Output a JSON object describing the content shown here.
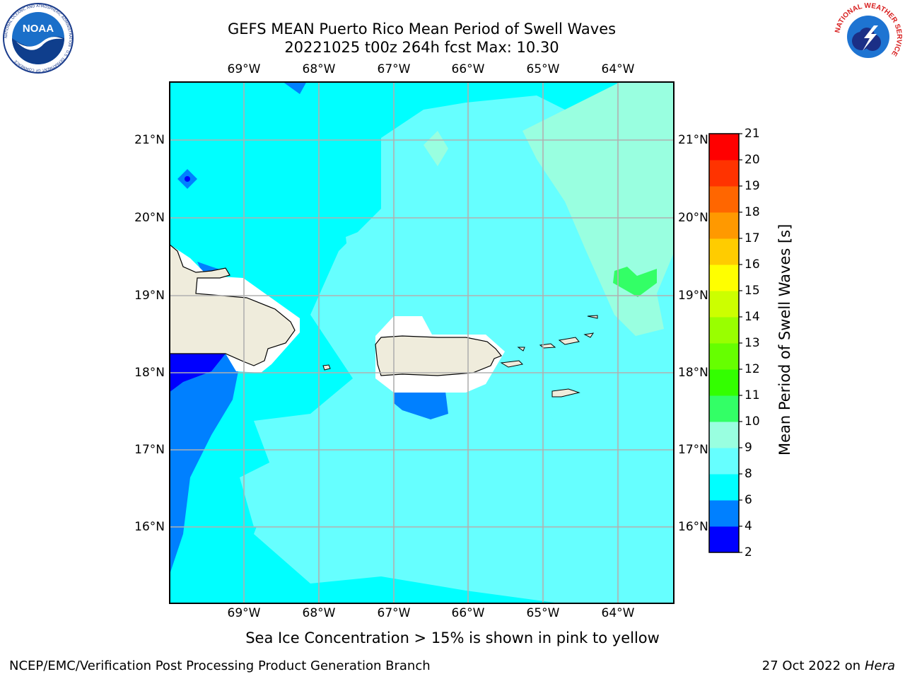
{
  "header": {
    "title_line1": "GEFS MEAN Puerto Rico Mean Period of Swell Waves",
    "title_line2": "20221025 t00z 264h fcst   Max: 10.30"
  },
  "logos": {
    "noaa": {
      "text": "NOAA",
      "ring_text": "NATIONAL OCEANIC AND ATMOSPHERIC ADMINISTRATION · U.S. DEPARTMENT OF COMMERCE"
    },
    "nws": {
      "ring_text": "NATIONAL WEATHER SERVICE"
    }
  },
  "map": {
    "lon_labels": [
      "69°W",
      "68°W",
      "67°W",
      "66°W",
      "65°W",
      "64°W"
    ],
    "lat_labels": [
      "21°N",
      "20°N",
      "19°N",
      "18°N",
      "17°N",
      "16°N"
    ],
    "extent": {
      "lon_min": -69.95,
      "lon_max": -63.2,
      "lat_min": 15.0,
      "lat_max": 21.75
    },
    "regions_note_colors": {
      "land": "#efecdc",
      "ice_mask": "#ffffff",
      "grid": "#b0b0b0"
    }
  },
  "colorbar": {
    "label": "Mean Period of Swell Waves [s]",
    "ticks": [
      "2",
      "4",
      "6",
      "8",
      "9",
      "10",
      "11",
      "12",
      "13",
      "14",
      "15",
      "16",
      "17",
      "18",
      "19",
      "20",
      "21"
    ],
    "bins": [
      {
        "from": 2,
        "to": 4,
        "color": "#0000ff"
      },
      {
        "from": 4,
        "to": 6,
        "color": "#0080ff"
      },
      {
        "from": 6,
        "to": 8,
        "color": "#00ffff"
      },
      {
        "from": 8,
        "to": 9,
        "color": "#66ffff"
      },
      {
        "from": 9,
        "to": 10,
        "color": "#99ffe0"
      },
      {
        "from": 10,
        "to": 11,
        "color": "#33ff66"
      },
      {
        "from": 11,
        "to": 12,
        "color": "#33ff00"
      },
      {
        "from": 12,
        "to": 13,
        "color": "#66ff00"
      },
      {
        "from": 13,
        "to": 14,
        "color": "#99ff00"
      },
      {
        "from": 14,
        "to": 15,
        "color": "#ccff00"
      },
      {
        "from": 15,
        "to": 16,
        "color": "#ffff00"
      },
      {
        "from": 16,
        "to": 17,
        "color": "#ffcc00"
      },
      {
        "from": 17,
        "to": 18,
        "color": "#ff9900"
      },
      {
        "from": 18,
        "to": 19,
        "color": "#ff6600"
      },
      {
        "from": 19,
        "to": 20,
        "color": "#ff3300"
      },
      {
        "from": 20,
        "to": 21,
        "color": "#ff0000"
      }
    ]
  },
  "notes": {
    "ice": "Sea Ice Concentration > 15% is shown in pink to yellow"
  },
  "footer": {
    "left": "NCEP/EMC/Verification Post Processing Product Generation Branch",
    "date": "27 Oct 2022 on ",
    "machine": "Hera"
  }
}
